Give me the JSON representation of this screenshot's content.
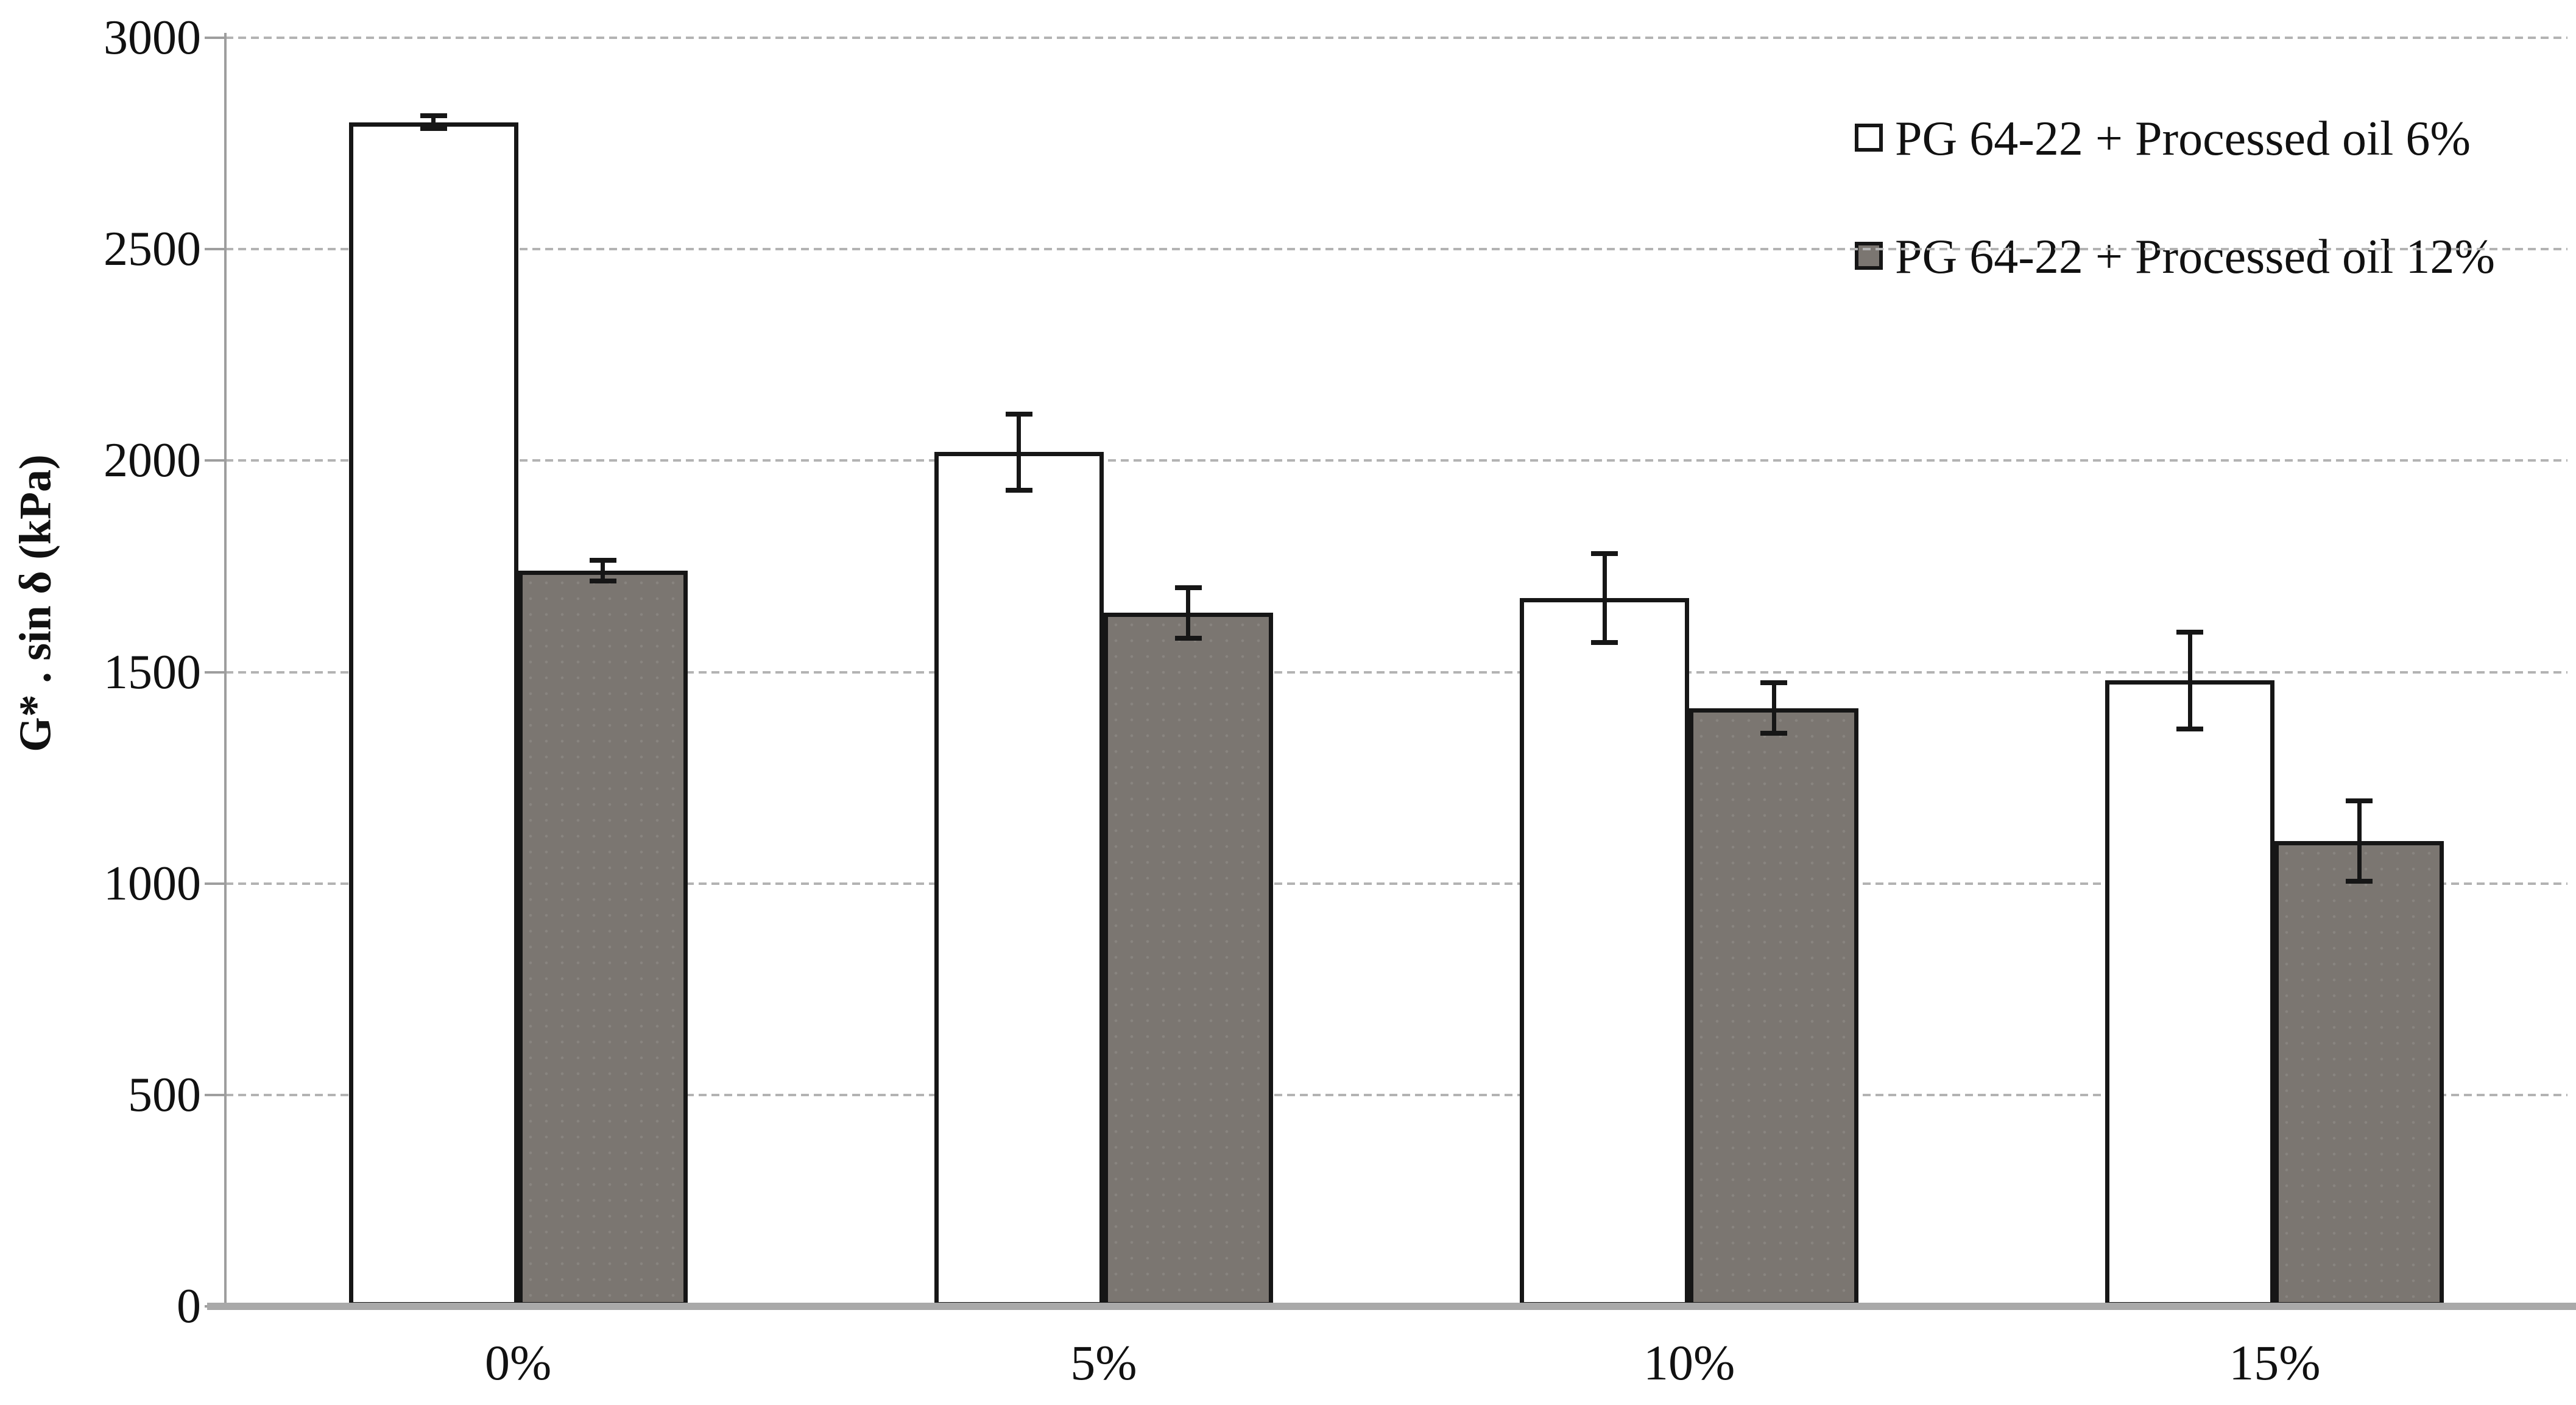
{
  "chart_data": {
    "type": "bar",
    "title": "",
    "categories": [
      "0%",
      "5%",
      "10%",
      "15%"
    ],
    "series": [
      {
        "name": "PG 64-22 + Processed oil 6%",
        "fill": "#ffffff",
        "border": "#161616",
        "values": [
          2800,
          2020,
          1675,
          1480
        ],
        "errors": [
          15,
          90,
          105,
          115
        ]
      },
      {
        "name": "PG 64-22 + Processed oil 12%",
        "fill": "#7b7671",
        "border": "#161616",
        "values": [
          1740,
          1640,
          1415,
          1100
        ],
        "errors": [
          25,
          60,
          60,
          95
        ]
      }
    ],
    "xlabel": "",
    "ylabel": "G* . sin δ (kPa)",
    "ylim": [
      0,
      3000
    ],
    "yticks": [
      0,
      500,
      1000,
      1500,
      2000,
      2500,
      3000
    ],
    "grid": "horizontal-dashed",
    "legend_position": "top-right",
    "error_bars": true
  },
  "colors": {
    "background": "#ffffff",
    "gridline": "#b3b3b3",
    "axis_line": "#9e9e9e",
    "baseline": "#a9a9a9",
    "bar_border": "#161616",
    "text": "#111111",
    "series1_fill": "#ffffff",
    "series2_fill": "#7b7671"
  }
}
